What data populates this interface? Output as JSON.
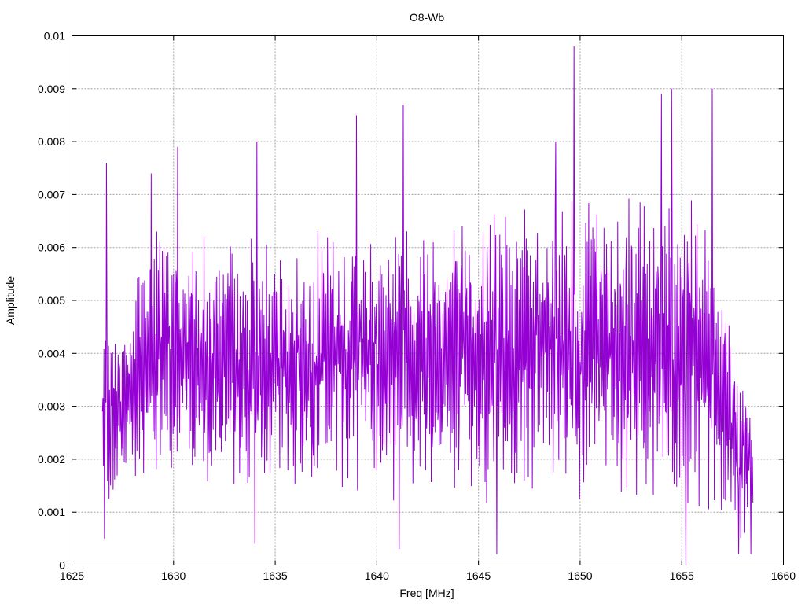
{
  "chart_data": {
    "type": "line",
    "title": "O8-Wb",
    "xlabel": "Freq [MHz]",
    "ylabel": "Amplitude",
    "xlim": [
      1625,
      1660
    ],
    "ylim": [
      0,
      0.01
    ],
    "xticks": [
      1625,
      1630,
      1635,
      1640,
      1645,
      1650,
      1655,
      1660
    ],
    "yticks": [
      0,
      0.001,
      0.002,
      0.003,
      0.004,
      0.005,
      0.006,
      0.007,
      0.008,
      0.009,
      0.01
    ],
    "xtick_labels": [
      "1625",
      "1630",
      "1635",
      "1640",
      "1645",
      "1650",
      "1655",
      "1660"
    ],
    "ytick_labels": [
      "0",
      "0.001",
      "0.002",
      "0.003",
      "0.004",
      "0.005",
      "0.006",
      "0.007",
      "0.008",
      "0.009",
      "0.01"
    ],
    "grid": true,
    "series": [
      {
        "color": "#9400d3",
        "x_start": 1626.5,
        "x_end": 1658.5,
        "x_step": 0.025,
        "envelope": {
          "x": [
            1626.5,
            1627.5,
            1628.7,
            1630.0,
            1632.0,
            1634.0,
            1636.0,
            1638.0,
            1640.0,
            1642.0,
            1644.0,
            1646.0,
            1648.0,
            1650.0,
            1652.0,
            1654.0,
            1656.0,
            1657.5,
            1658.5
          ],
          "lo": [
            0.001,
            0.0015,
            0.0015,
            0.0015,
            0.0015,
            0.0012,
            0.0012,
            0.0015,
            0.0012,
            0.0012,
            0.0012,
            0.001,
            0.0012,
            0.0012,
            0.0012,
            0.0012,
            0.001,
            0.0006,
            0.0002
          ],
          "hi": [
            0.0045,
            0.0045,
            0.0065,
            0.0065,
            0.0062,
            0.0062,
            0.0062,
            0.0065,
            0.0068,
            0.0068,
            0.0068,
            0.0068,
            0.007,
            0.007,
            0.007,
            0.0072,
            0.007,
            0.0045,
            0.0032
          ]
        },
        "peaks": [
          {
            "x": 1626.7,
            "y": 0.0076
          },
          {
            "x": 1628.9,
            "y": 0.0074
          },
          {
            "x": 1630.2,
            "y": 0.0079
          },
          {
            "x": 1634.1,
            "y": 0.008
          },
          {
            "x": 1639.0,
            "y": 0.0085
          },
          {
            "x": 1641.3,
            "y": 0.0087
          },
          {
            "x": 1648.8,
            "y": 0.008
          },
          {
            "x": 1649.7,
            "y": 0.0098
          },
          {
            "x": 1654.0,
            "y": 0.0089
          },
          {
            "x": 1654.5,
            "y": 0.009
          },
          {
            "x": 1656.5,
            "y": 0.009
          }
        ],
        "dips": [
          {
            "x": 1626.6,
            "y": 0.0005
          },
          {
            "x": 1634.0,
            "y": 0.0004
          },
          {
            "x": 1641.1,
            "y": 0.0003
          },
          {
            "x": 1645.9,
            "y": 0.0002
          },
          {
            "x": 1655.2,
            "y": 0.0
          },
          {
            "x": 1657.8,
            "y": 0.0002
          },
          {
            "x": 1658.4,
            "y": 0.0002
          }
        ]
      }
    ]
  }
}
